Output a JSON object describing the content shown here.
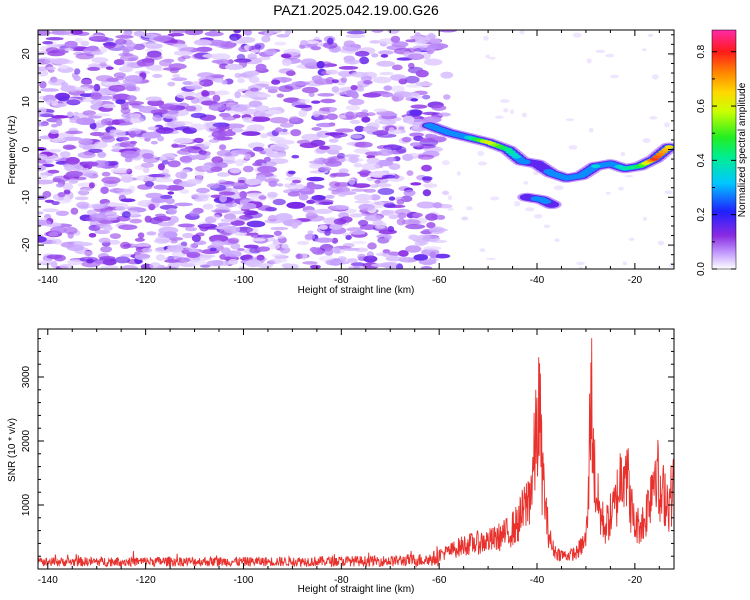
{
  "title": "PAZ1.2025.042.19.00.G26",
  "chart_data": [
    {
      "type": "heatmap",
      "xlabel": "Height of straight line (km)",
      "ylabel": "Frequency (Hz)",
      "xlim": [
        -142,
        -12
      ],
      "ylim": [
        -25,
        25
      ],
      "xticks": [
        -140,
        -120,
        -100,
        -80,
        -60,
        -40,
        -20
      ],
      "yticks": [
        -20,
        -10,
        0,
        10,
        20
      ],
      "colorbar": {
        "label": "Normalized spectral amplitude",
        "range": [
          0,
          0.88
        ],
        "ticks": [
          0.0,
          0.2,
          0.4,
          0.6,
          0.8
        ],
        "colormap": "rainbow: white-violet-blue-cyan-green-yellow-orange-red-magenta"
      },
      "noise_region": {
        "x_range": [
          -142,
          -60
        ],
        "freq_range": [
          -25,
          25
        ],
        "amplitude": 0.08
      },
      "ridge": {
        "x": [
          -62,
          -58,
          -54,
          -50,
          -46,
          -43,
          -40,
          -37,
          -34,
          -31,
          -28,
          -25,
          -22,
          -19,
          -16,
          -13
        ],
        "freq": [
          5,
          3.5,
          2.5,
          1.5,
          0,
          -2.5,
          -3,
          -5,
          -6,
          -5.5,
          -3.5,
          -3,
          -4,
          -3.5,
          -2,
          0.5
        ],
        "amplitude": [
          0.28,
          0.3,
          0.35,
          0.62,
          0.42,
          0.3,
          0.25,
          0.3,
          0.32,
          0.3,
          0.35,
          0.3,
          0.38,
          0.45,
          0.78,
          0.65
        ]
      },
      "ridge_branch": {
        "x": [
          -42,
          -39,
          -37
        ],
        "freq": [
          -10,
          -10.5,
          -11.5
        ],
        "amplitude": [
          0.26,
          0.3,
          0.26
        ]
      }
    },
    {
      "type": "line",
      "xlabel": "Height of straight line (km)",
      "ylabel": "SNR (10 * v/v)",
      "xlim": [
        -142,
        -12
      ],
      "ylim": [
        0,
        3750
      ],
      "xticks": [
        -140,
        -120,
        -100,
        -80,
        -60,
        -40,
        -20
      ],
      "yticks": [
        1000,
        2000,
        3000
      ],
      "series": [
        {
          "color": "#e8302c",
          "x": [
            -142,
            -130,
            -115,
            -100,
            -85,
            -70,
            -62,
            -58,
            -55,
            -52,
            -49,
            -46,
            -44,
            -42,
            -41,
            -40,
            -39.5,
            -39,
            -38.5,
            -38,
            -37,
            -36,
            -34,
            -32,
            -30,
            -29.5,
            -29,
            -28.5,
            -28,
            -27,
            -26,
            -24,
            -23,
            -22,
            -21,
            -20,
            -18,
            -17,
            -16,
            -15.5,
            -15,
            -14,
            -13,
            -12
          ],
          "values": [
            140,
            150,
            155,
            150,
            160,
            170,
            220,
            330,
            450,
            500,
            550,
            680,
            850,
            1250,
            1650,
            2650,
            3050,
            1900,
            1450,
            900,
            420,
            300,
            250,
            300,
            550,
            1300,
            3750,
            2200,
            1500,
            1000,
            800,
            1200,
            1700,
            2200,
            1300,
            800,
            900,
            1400,
            1900,
            2200,
            1200,
            1450,
            1250,
            1600
          ]
        }
      ]
    }
  ]
}
